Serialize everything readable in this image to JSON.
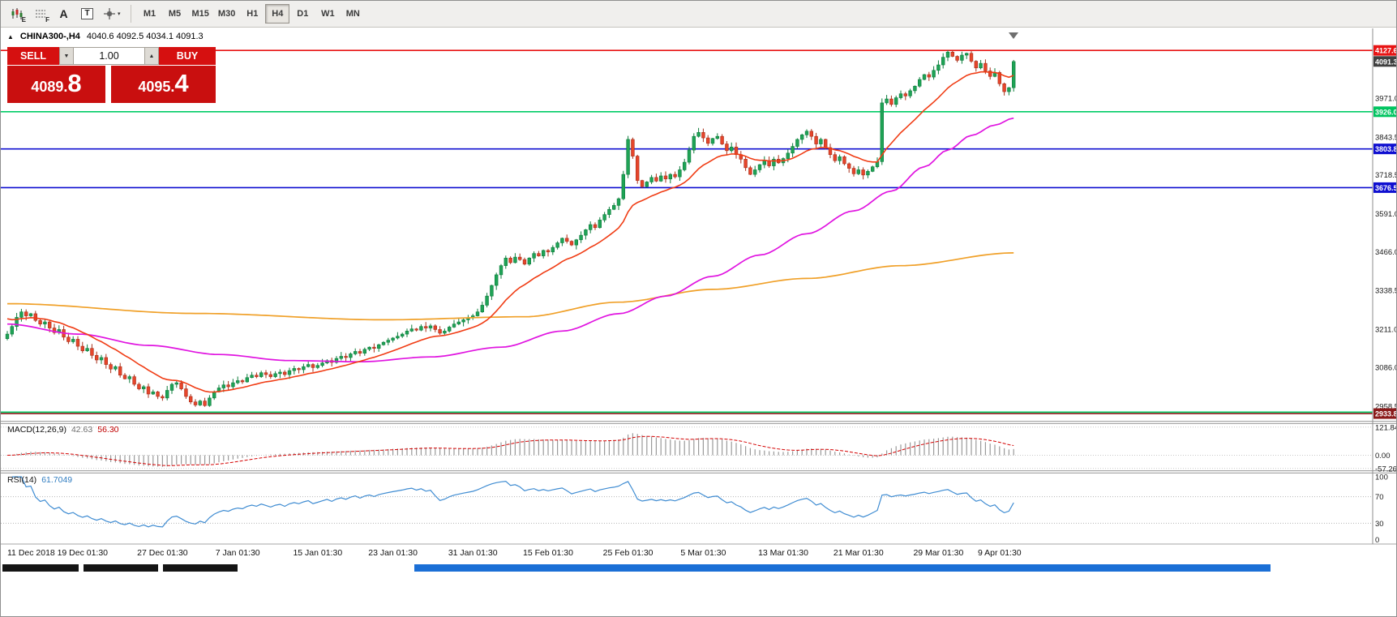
{
  "toolbar": {
    "tool_labels": {
      "chart_sub": "E",
      "grid_sub": "F",
      "text": "A",
      "textbox": "T"
    },
    "timeframes": [
      "M1",
      "M5",
      "M15",
      "M30",
      "H1",
      "H4",
      "D1",
      "W1",
      "MN"
    ],
    "active_timeframe": "H4"
  },
  "icons": {
    "collapse": "▲",
    "caret_down": "▼",
    "caret_up": "▲",
    "dropdown": "▾",
    "shift_marker": "▽"
  },
  "chart_header": {
    "symbol_period": "CHINA300-,H4",
    "ohlc": "4040.6 4092.5 4034.1 4091.3"
  },
  "trade_panel": {
    "sell_label": "SELL",
    "buy_label": "BUY",
    "volume": "1.00",
    "sell_price": {
      "main": "4089.",
      "big": "8"
    },
    "buy_price": {
      "main": "4095.",
      "big": "4"
    }
  },
  "indicators": {
    "macd_name": "MACD(12,26,9)",
    "macd_v1": "42.63",
    "macd_v2": "56.30",
    "rsi_name": "RSI(14)",
    "rsi_v": "61.7049"
  },
  "chart_data": {
    "type": "candlestick",
    "symbol": "CHINA300-",
    "timeframe": "H4",
    "ohlc_display": {
      "open": 4040.6,
      "high": 4092.5,
      "low": 4034.1,
      "close": 4091.3
    },
    "ylim": [
      2910,
      4200
    ],
    "y_ticks": [
      3971.0,
      3843.5,
      3718.5,
      3591.0,
      3466.0,
      3338.5,
      3211.0,
      3086.0,
      2958.5
    ],
    "price_marker": {
      "price": 4091.3,
      "label": "4091.3",
      "bg": "#404040"
    },
    "hlines": [
      {
        "price": 4127.6,
        "color": "#e81414",
        "label": "4127.6",
        "label_bg": "#e81414"
      },
      {
        "price": 3926.0,
        "color": "#00cc66",
        "label": "3926.0",
        "label_bg": "#00c460"
      },
      {
        "price": 3803.8,
        "color": "#0f0fd0",
        "label": "3803.8",
        "label_bg": "#0f0fd0"
      },
      {
        "price": 3676.5,
        "color": "#0f0fd0",
        "label": "3676.5",
        "label_bg": "#0f0fd0"
      },
      {
        "price": 2938.5,
        "color": "#00cc66",
        "label": "",
        "label_bg": ""
      },
      {
        "price": 2933.8,
        "color": "#8b1a1a",
        "label": "2933.8",
        "label_bg": "#8b1a1a"
      }
    ],
    "x_labels": [
      {
        "text": "11 Dec 2018",
        "i": 0
      },
      {
        "text": "19 Dec 01:30",
        "i": 16
      },
      {
        "text": "27 Dec 01:30",
        "i": 33
      },
      {
        "text": "7 Jan 01:30",
        "i": 49
      },
      {
        "text": "15 Jan 01:30",
        "i": 66
      },
      {
        "text": "23 Jan 01:30",
        "i": 82
      },
      {
        "text": "31 Jan 01:30",
        "i": 99
      },
      {
        "text": "15 Feb 01:30",
        "i": 115
      },
      {
        "text": "25 Feb 01:30",
        "i": 132
      },
      {
        "text": "5 Mar 01:30",
        "i": 148
      },
      {
        "text": "13 Mar 01:30",
        "i": 165
      },
      {
        "text": "21 Mar 01:30",
        "i": 181
      },
      {
        "text": "29 Mar 01:30",
        "i": 198
      },
      {
        "text": "9 Apr 01:30",
        "i": 211
      }
    ],
    "closes": [
      3195,
      3220,
      3250,
      3268,
      3255,
      3262,
      3240,
      3228,
      3235,
      3215,
      3200,
      3210,
      3185,
      3170,
      3178,
      3155,
      3140,
      3148,
      3125,
      3110,
      3118,
      3095,
      3080,
      3088,
      3060,
      3048,
      3055,
      3030,
      3015,
      3022,
      2998,
      3005,
      2990,
      2985,
      3010,
      3030,
      3035,
      3015,
      2990,
      2972,
      2962,
      2975,
      2960,
      2985,
      3005,
      3018,
      3028,
      3022,
      3035,
      3042,
      3038,
      3052,
      3060,
      3055,
      3068,
      3062,
      3055,
      3065,
      3070,
      3062,
      3075,
      3082,
      3078,
      3088,
      3095,
      3085,
      3092,
      3100,
      3108,
      3102,
      3115,
      3122,
      3118,
      3130,
      3138,
      3132,
      3145,
      3152,
      3148,
      3160,
      3168,
      3175,
      3182,
      3188,
      3195,
      3205,
      3212,
      3208,
      3220,
      3215,
      3222,
      3210,
      3198,
      3205,
      3218,
      3228,
      3235,
      3242,
      3248,
      3255,
      3268,
      3290,
      3320,
      3355,
      3390,
      3420,
      3445,
      3430,
      3448,
      3440,
      3425,
      3445,
      3460,
      3452,
      3470,
      3465,
      3480,
      3495,
      3510,
      3500,
      3488,
      3505,
      3520,
      3538,
      3555,
      3545,
      3570,
      3588,
      3605,
      3618,
      3640,
      3720,
      3835,
      3780,
      3700,
      3680,
      3695,
      3710,
      3698,
      3715,
      3705,
      3720,
      3712,
      3735,
      3760,
      3800,
      3845,
      3858,
      3840,
      3822,
      3838,
      3845,
      3820,
      3798,
      3810,
      3785,
      3770,
      3742,
      3720,
      3735,
      3752,
      3765,
      3748,
      3770,
      3758,
      3772,
      3790,
      3812,
      3835,
      3850,
      3862,
      3845,
      3820,
      3835,
      3808,
      3785,
      3765,
      3778,
      3755,
      3740,
      3722,
      3735,
      3718,
      3730,
      3745,
      3762,
      3955,
      3968,
      3950,
      3972,
      3985,
      3978,
      3995,
      4010,
      4032,
      4048,
      4040,
      4062,
      4080,
      4105,
      4122,
      4108,
      4095,
      4112,
      4118,
      4092,
      4070,
      4085,
      4060,
      4042,
      4055,
      4018,
      3992,
      4005,
      4091
    ],
    "moving_averages": {
      "fast": {
        "type": "ema",
        "period": 16,
        "seed": 3252,
        "color": "#f03c14"
      },
      "medium": {
        "color": "#e014e0",
        "anchors": [
          [
            0,
            3228
          ],
          [
            15,
            3195
          ],
          [
            30,
            3158
          ],
          [
            45,
            3128
          ],
          [
            60,
            3108
          ],
          [
            75,
            3104
          ],
          [
            90,
            3120
          ],
          [
            105,
            3152
          ],
          [
            118,
            3205
          ],
          [
            130,
            3262
          ],
          [
            140,
            3320
          ],
          [
            150,
            3385
          ],
          [
            160,
            3455
          ],
          [
            170,
            3525
          ],
          [
            180,
            3600
          ],
          [
            188,
            3665
          ],
          [
            195,
            3745
          ],
          [
            200,
            3800
          ],
          [
            205,
            3848
          ],
          [
            210,
            3882
          ],
          [
            214,
            3905
          ]
        ]
      },
      "slow": {
        "color": "#f0a028",
        "anchors": [
          [
            0,
            3295
          ],
          [
            40,
            3263
          ],
          [
            80,
            3242
          ],
          [
            110,
            3252
          ],
          [
            130,
            3300
          ],
          [
            150,
            3342
          ],
          [
            170,
            3378
          ],
          [
            190,
            3420
          ],
          [
            214,
            3462
          ]
        ]
      }
    },
    "macd": {
      "params": [
        12,
        26,
        9
      ],
      "ticks": [
        121.84,
        0,
        -57.26
      ],
      "ylim": [
        -65,
        135
      ],
      "histogram_color": "#9a9a9a",
      "signal_color": "#d40000"
    },
    "rsi": {
      "period": 14,
      "ticks": [
        100,
        70,
        30,
        0
      ],
      "levels": [
        70,
        30
      ],
      "ylim": [
        0,
        105
      ],
      "color": "#3f8cd2"
    },
    "candle_up_color": "#1fa356",
    "candle_down_color": "#e6452b"
  }
}
